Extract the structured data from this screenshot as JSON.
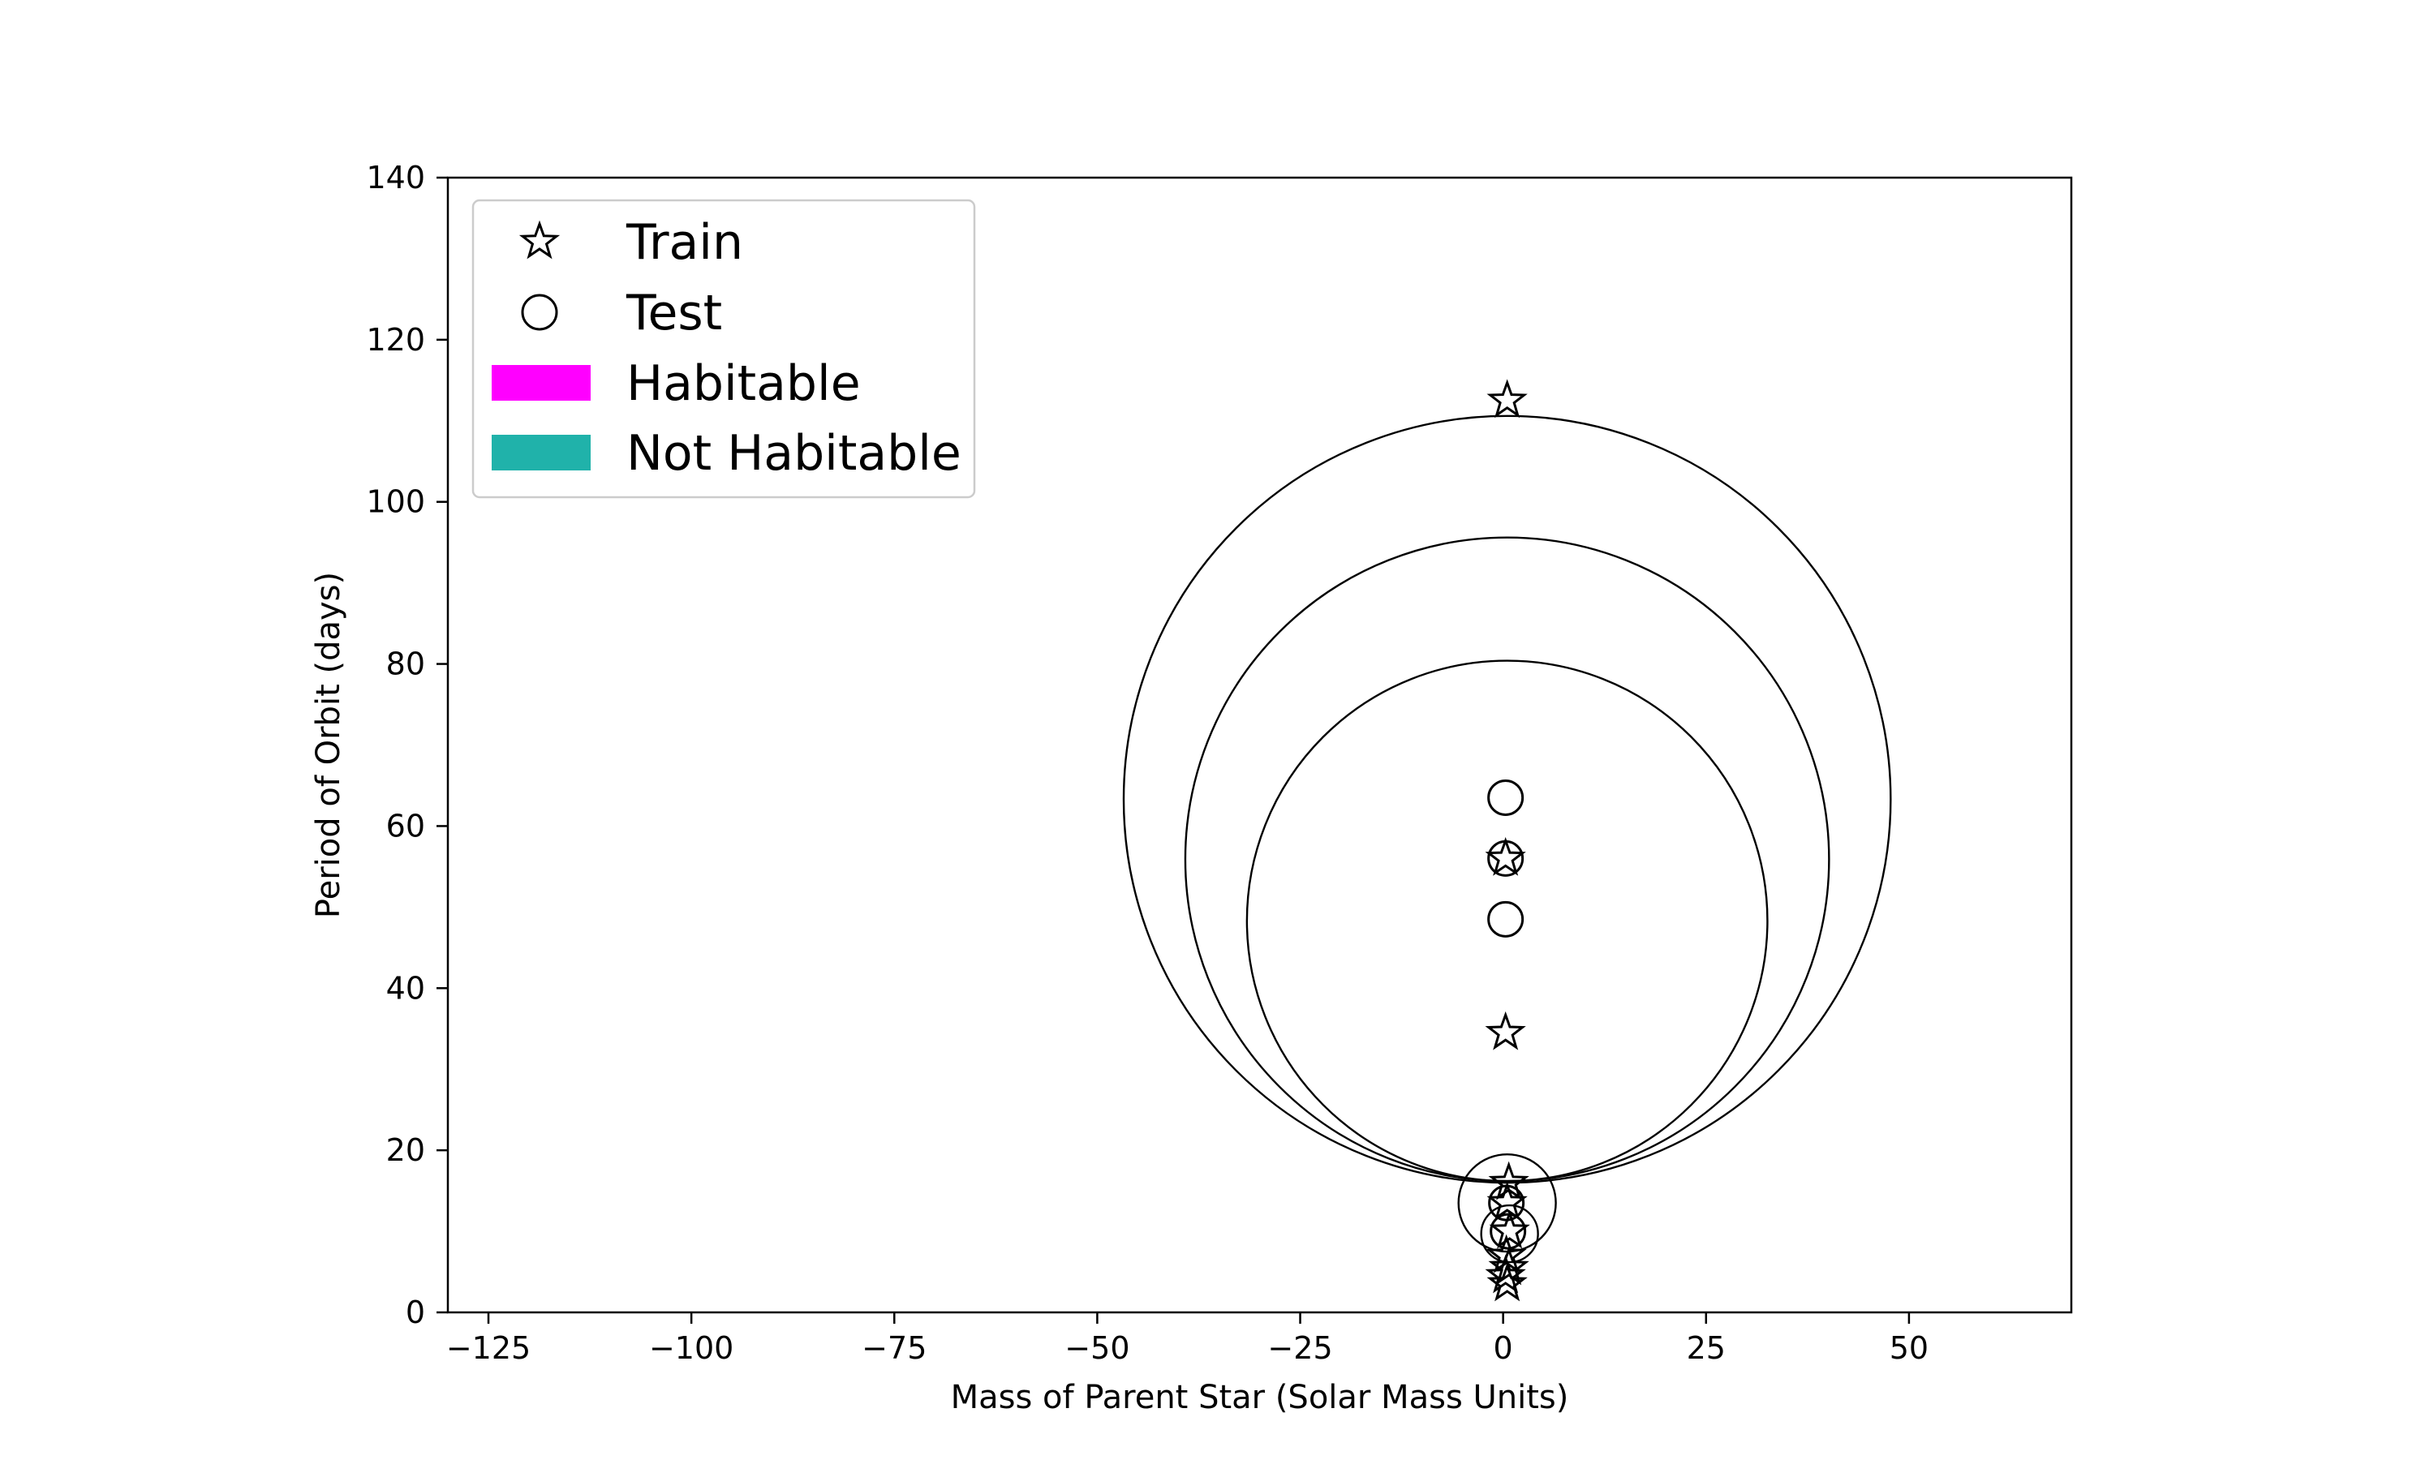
{
  "chart_data": {
    "type": "scatter",
    "title": "",
    "xlabel": "Mass of Parent Star (Solar Mass Units)",
    "ylabel": "Period of Orbit (days)",
    "xlim": [
      -130,
      70
    ],
    "ylim": [
      0,
      140
    ],
    "xticks": [
      -125,
      -100,
      -75,
      -50,
      -25,
      0,
      25,
      50
    ],
    "xtick_labels": [
      "−125",
      "−100",
      "−75",
      "−50",
      "−25",
      "0",
      "25",
      "50"
    ],
    "yticks": [
      0,
      20,
      40,
      60,
      80,
      100,
      120,
      140
    ],
    "ytick_labels": [
      "0",
      "20",
      "40",
      "60",
      "80",
      "100",
      "120",
      "140"
    ],
    "grid": false,
    "legend": {
      "position": "top-left",
      "entries": [
        {
          "label": "Train",
          "marker": "star"
        },
        {
          "label": "Test",
          "marker": "circle"
        },
        {
          "label": "Habitable",
          "marker": "patch",
          "color": "#ff00ff"
        },
        {
          "label": "Not Habitable",
          "marker": "patch",
          "color": "#20b2aa"
        }
      ]
    },
    "series": [
      {
        "name": "Train",
        "marker": "star",
        "points": [
          {
            "x": 0.5,
            "y": 112.5
          },
          {
            "x": 0.3,
            "y": 56
          },
          {
            "x": 0.3,
            "y": 34.5
          },
          {
            "x": 0.7,
            "y": 16
          },
          {
            "x": 0.5,
            "y": 13.5
          },
          {
            "x": 0.8,
            "y": 10
          },
          {
            "x": 0.4,
            "y": 7
          },
          {
            "x": 0.7,
            "y": 5.5
          },
          {
            "x": 0.3,
            "y": 4.5
          },
          {
            "x": 0.5,
            "y": 3.5
          }
        ]
      },
      {
        "name": "Test",
        "marker": "circle",
        "points": [
          {
            "x": 0.3,
            "y": 63.5
          },
          {
            "x": 0.3,
            "y": 56
          },
          {
            "x": 0.3,
            "y": 48.5
          },
          {
            "x": 0.4,
            "y": 13.5
          },
          {
            "x": 0.6,
            "y": 10
          }
        ]
      }
    ],
    "boundary_circles": [
      {
        "cx": 0.5,
        "cy": 63.3,
        "r_days": 47.3
      },
      {
        "cx": 0.5,
        "cy": 55.9,
        "r_days": 39.7
      },
      {
        "cx": 0.5,
        "cy": 48.3,
        "r_days": 32.1
      },
      {
        "cx": 0.5,
        "cy": 13.5,
        "r_days": 6.0
      },
      {
        "cx": 0.8,
        "cy": 9.7,
        "r_days": 3.5
      }
    ],
    "colors": {
      "habitable": "#ff00ff",
      "not_habitable": "#20b2aa",
      "marker_edge": "#000000"
    }
  }
}
